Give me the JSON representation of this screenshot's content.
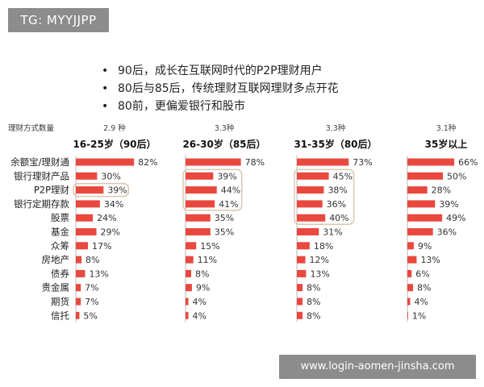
{
  "tag": "TG: MYYJJPP",
  "bullets": [
    "90后，成长在互联网时代的P2P理财用户",
    "80后与85后，传统理财互联网理财多点开花",
    "80前，更偏爱银行和股市"
  ],
  "watermark": "www.login-aomen-jinsha.com",
  "colors": {
    "bar": "#e8483e",
    "highlight": "#d9c7ad",
    "tag": "#8c8c8c"
  },
  "chart_data": {
    "type": "bar",
    "orientation": "horizontal",
    "row_header": "理财方式数量",
    "categories": [
      "余额宝/理财通",
      "银行理财产品",
      "P2P理财",
      "银行定期存款",
      "股票",
      "基金",
      "众筹",
      "房地产",
      "债券",
      "贵金属",
      "期货",
      "信托"
    ],
    "series": [
      {
        "name": "16-25岁（90后）",
        "count": "2.9 种",
        "values": [
          82,
          30,
          39,
          34,
          24,
          29,
          17,
          8,
          13,
          7,
          7,
          5
        ],
        "highlight": [
          2
        ]
      },
      {
        "name": "26-30岁（85后）",
        "count": "3.3种",
        "values": [
          78,
          39,
          44,
          41,
          35,
          35,
          15,
          11,
          8,
          9,
          4,
          4
        ],
        "highlight": [
          1,
          2,
          3
        ]
      },
      {
        "name": "31-35岁（80后）",
        "count": "3.3种",
        "values": [
          73,
          45,
          38,
          36,
          40,
          31,
          18,
          12,
          13,
          8,
          8,
          8
        ],
        "highlight": [
          1,
          2,
          3,
          4
        ]
      },
      {
        "name": "35岁以上",
        "count": "3.1种",
        "values": [
          66,
          50,
          28,
          39,
          49,
          36,
          9,
          13,
          6,
          8,
          4,
          1
        ],
        "highlight": []
      }
    ],
    "value_suffix": "%",
    "xlim": [
      0,
      100
    ]
  }
}
